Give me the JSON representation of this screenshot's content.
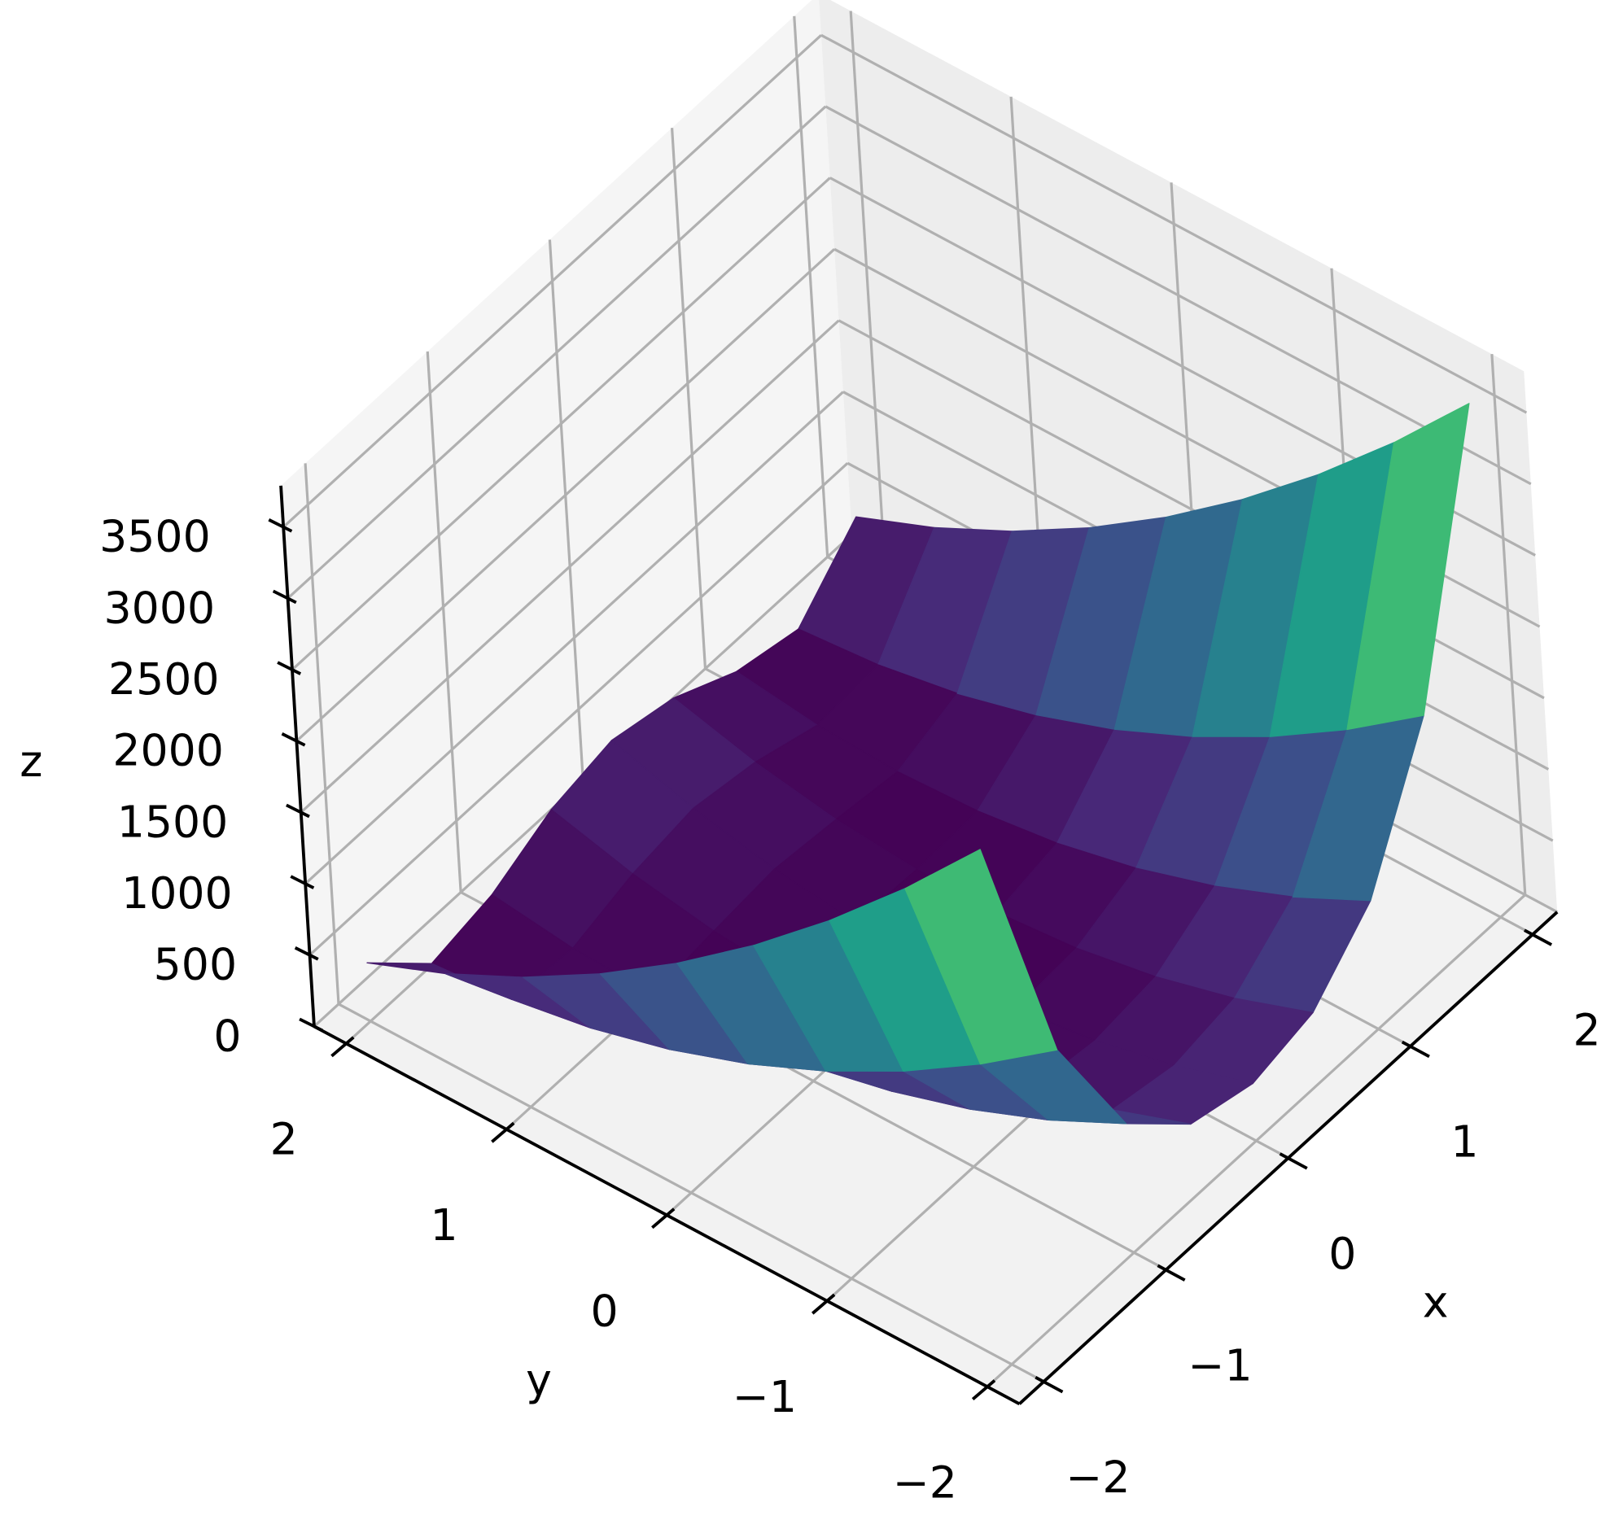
{
  "chart_data": {
    "type": "surface",
    "xlabel": "x",
    "ylabel": "y",
    "zlabel": "z",
    "x": [
      -2,
      -1.5,
      -1,
      -0.5,
      0,
      0.5,
      1,
      1.5,
      2
    ],
    "y": [
      -2,
      -1.5,
      -1,
      -0.5,
      0,
      0.5,
      1,
      1.5,
      2
    ],
    "z": [
      [
        3609,
        1812.5,
        904,
        508.5,
        401,
        506.5,
        900,
        1806.5,
        3601
      ],
      [
        3034,
        1412.5,
        629,
        308.5,
        226,
        306.5,
        625,
        1406.5,
        3026
      ],
      [
        2509,
        1062.5,
        404,
        158.5,
        101,
        156.5,
        400,
        1056.5,
        2501
      ],
      [
        2034,
        762.5,
        229,
        58.5,
        26,
        56.5,
        225,
        756.5,
        2026
      ],
      [
        1609,
        512.5,
        104,
        8.5,
        1,
        6.5,
        100,
        506.5,
        1601
      ],
      [
        1234,
        312.5,
        29,
        8.5,
        26,
        6.5,
        25,
        306.5,
        1226
      ],
      [
        909,
        162.5,
        4,
        58.5,
        101,
        56.5,
        0,
        156.5,
        901
      ],
      [
        634,
        62.5,
        29,
        158.5,
        226,
        156.5,
        25,
        56.5,
        626
      ],
      [
        409,
        12.5,
        104,
        308.5,
        401,
        306.5,
        100,
        6.5,
        401
      ]
    ],
    "xlim": [
      -2.2,
      2.2
    ],
    "ylim": [
      -2.2,
      2.2
    ],
    "zlim": [
      0,
      3790
    ],
    "xticks": [
      {
        "value": -2,
        "label": "−2"
      },
      {
        "value": -1,
        "label": "−1"
      },
      0,
      1,
      2
    ],
    "yticks": [
      {
        "value": -2,
        "label": "−2"
      },
      {
        "value": -1,
        "label": "−1"
      },
      0,
      1,
      2
    ],
    "zticks": [
      0,
      500,
      1000,
      1500,
      2000,
      2500,
      3000,
      3500
    ],
    "colormap": "viridis",
    "grid": true
  }
}
